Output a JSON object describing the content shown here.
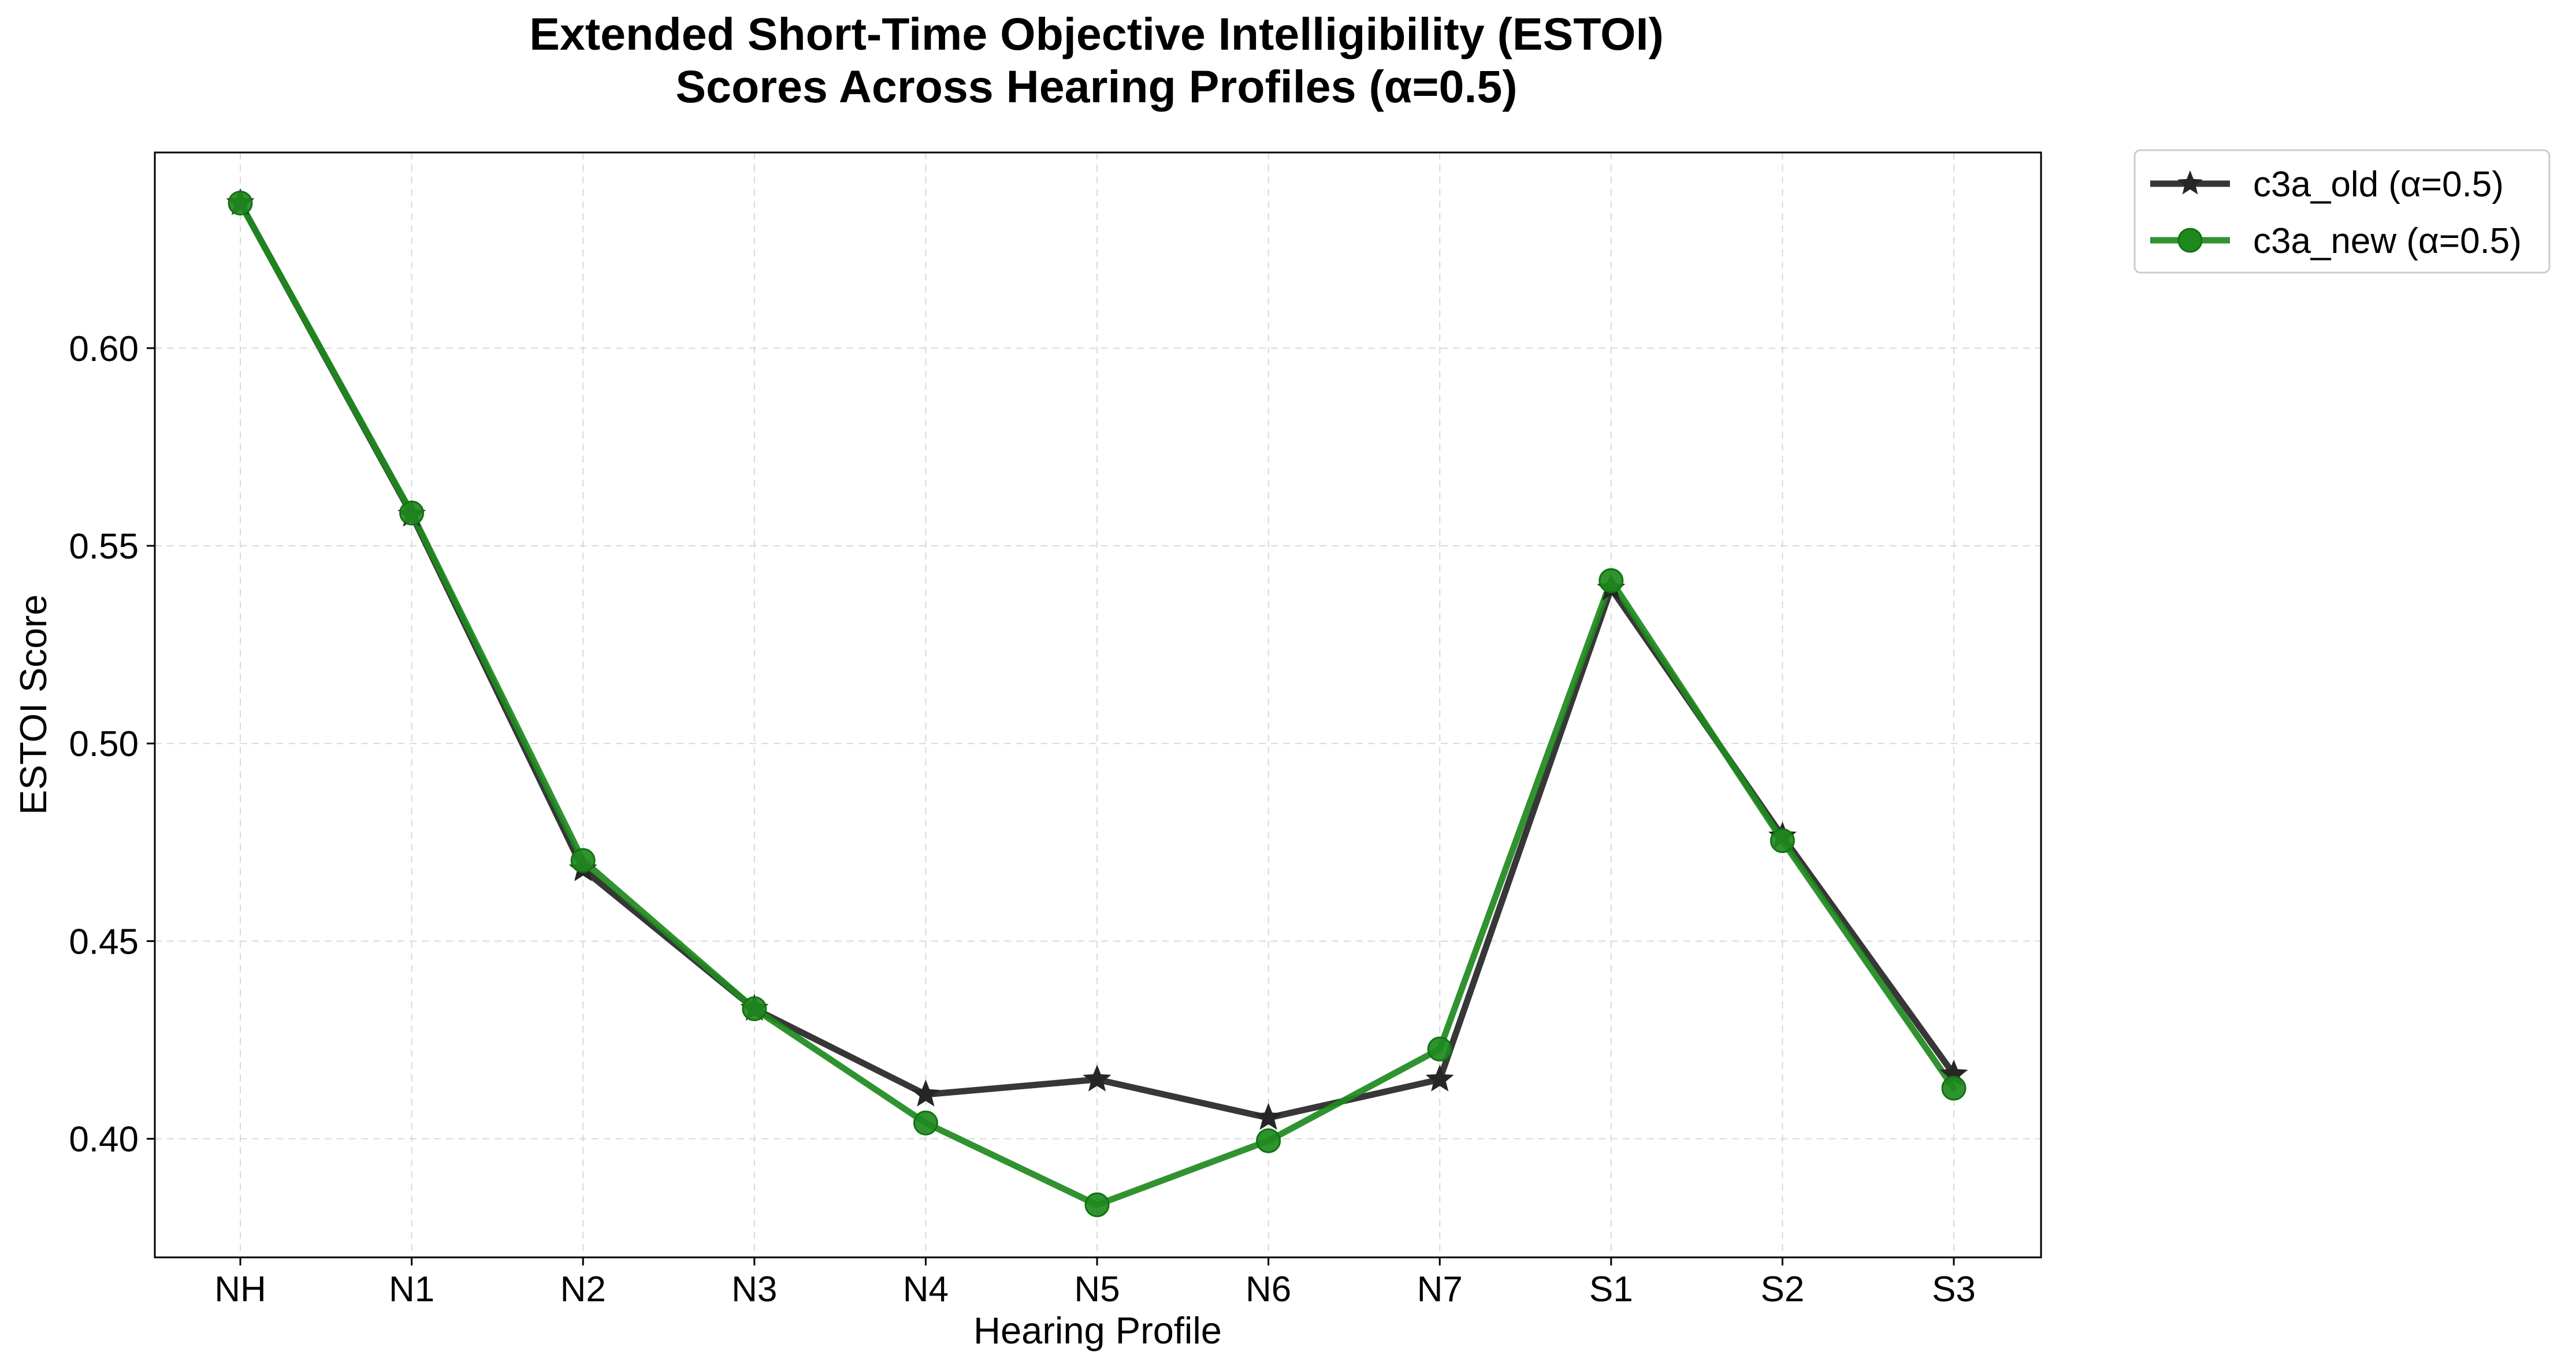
{
  "chart_data": {
    "type": "line",
    "title_line1": "Extended Short-Time Objective Intelligibility (ESTOI)",
    "title_line2": "Scores Across Hearing Profiles (α=0.5)",
    "xlabel": "Hearing Profile",
    "ylabel": "ESTOI Score",
    "categories": [
      "NH",
      "N1",
      "N2",
      "N3",
      "N4",
      "N5",
      "N6",
      "N7",
      "S1",
      "S2",
      "S3"
    ],
    "ylim": [
      0.37,
      0.6495
    ],
    "yticks": [
      "0.40",
      "0.45",
      "0.50",
      "0.55",
      "0.60"
    ],
    "grid": true,
    "legend_position": "outside-top-right",
    "series": [
      {
        "name": "c3a_old (α=0.5)",
        "marker": "star",
        "color": "#262626",
        "values": [
          0.6367,
          0.5579,
          0.4682,
          0.4329,
          0.4112,
          0.415,
          0.4053,
          0.415,
          0.5392,
          0.4765,
          0.4163
        ]
      },
      {
        "name": "c3a_new (α=0.5)",
        "marker": "circle",
        "color": "#1e8a1e",
        "values": [
          0.6367,
          0.5583,
          0.4704,
          0.4329,
          0.404,
          0.3833,
          0.3995,
          0.4227,
          0.5412,
          0.4754,
          0.4128
        ]
      }
    ]
  }
}
